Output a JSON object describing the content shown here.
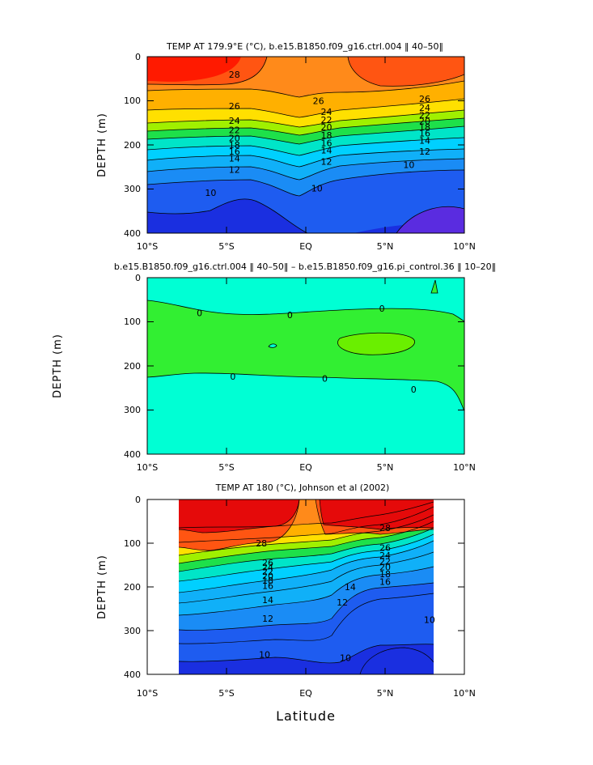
{
  "chart_data": [
    {
      "type": "contour",
      "title": "TEMP AT 179.9°E (°C), b.e15.B1850.f09_g16.ctrl.004 ‖ 40–50‖",
      "ylabel": "DEPTH  (m)",
      "xlabel": "",
      "x_ticks": [
        "10°S",
        "5°S",
        "EQ",
        "5°N",
        "10°N"
      ],
      "y_ticks": [
        "0",
        "100",
        "200",
        "300",
        "400"
      ],
      "xlim": [
        -10,
        10
      ],
      "ylim": [
        0,
        400
      ],
      "y_inverted": true,
      "units": "°C",
      "contour_labels": [
        {
          "x": 0.8,
          "y": 100,
          "label": "26"
        },
        {
          "x": -4.5,
          "y": 112,
          "label": "26"
        },
        {
          "x": -4.5,
          "y": 145,
          "label": "24"
        },
        {
          "x": -4.5,
          "y": 166,
          "label": "22"
        },
        {
          "x": -4.5,
          "y": 184,
          "label": "20"
        },
        {
          "x": -4.5,
          "y": 200,
          "label": "18"
        },
        {
          "x": -4.5,
          "y": 215,
          "label": "16"
        },
        {
          "x": -4.5,
          "y": 230,
          "label": "14"
        },
        {
          "x": -4.5,
          "y": 256,
          "label": "12"
        },
        {
          "x": -6.0,
          "y": 308,
          "label": "10"
        },
        {
          "x": -4.5,
          "y": 40,
          "label": "28"
        },
        {
          "x": 1.3,
          "y": 125,
          "label": "24"
        },
        {
          "x": 1.3,
          "y": 143,
          "label": "22"
        },
        {
          "x": 1.3,
          "y": 160,
          "label": "20"
        },
        {
          "x": 1.3,
          "y": 178,
          "label": "18"
        },
        {
          "x": 1.3,
          "y": 195,
          "label": "16"
        },
        {
          "x": 1.3,
          "y": 212,
          "label": "14"
        },
        {
          "x": 1.3,
          "y": 238,
          "label": "12"
        },
        {
          "x": 0.7,
          "y": 298,
          "label": "10"
        },
        {
          "x": 7.5,
          "y": 95,
          "label": "26"
        },
        {
          "x": 7.5,
          "y": 116,
          "label": "24"
        },
        {
          "x": 7.5,
          "y": 132,
          "label": "22"
        },
        {
          "x": 7.5,
          "y": 146,
          "label": "20"
        },
        {
          "x": 7.5,
          "y": 160,
          "label": "18"
        },
        {
          "x": 7.5,
          "y": 173,
          "label": "16"
        },
        {
          "x": 7.5,
          "y": 190,
          "label": "14"
        },
        {
          "x": 7.5,
          "y": 215,
          "label": "12"
        },
        {
          "x": 6.5,
          "y": 245,
          "label": "10"
        }
      ]
    },
    {
      "type": "contour",
      "title": "b.e15.B1850.f09_g16.ctrl.004 ‖ 40–50‖ – b.e15.B1850.f09_g16.pi_control.36 ‖ 10–20‖",
      "ylabel": "DEPTH  (m)",
      "xlabel": "",
      "x_ticks": [
        "10°S",
        "5°S",
        "EQ",
        "5°N",
        "10°N"
      ],
      "y_ticks": [
        "0",
        "100",
        "200",
        "300",
        "400"
      ],
      "xlim": [
        -10,
        10
      ],
      "ylim": [
        0,
        400
      ],
      "y_inverted": true,
      "units": "°C",
      "contour_labels": [
        {
          "x": -6.7,
          "y": 80,
          "label": "0"
        },
        {
          "x": -1.0,
          "y": 84,
          "label": "0"
        },
        {
          "x": 4.8,
          "y": 70,
          "label": "0"
        },
        {
          "x": -4.6,
          "y": 224,
          "label": "0"
        },
        {
          "x": 1.2,
          "y": 228,
          "label": "0"
        },
        {
          "x": 6.8,
          "y": 253,
          "label": "0"
        }
      ]
    },
    {
      "type": "contour",
      "title": "TEMP AT 180 (°C), Johnson et al (2002)",
      "ylabel": "DEPTH  (m)",
      "xlabel": "Latitude",
      "x_ticks": [
        "10°S",
        "5°S",
        "EQ",
        "5°N",
        "10°N"
      ],
      "y_ticks": [
        "0",
        "100",
        "200",
        "300",
        "400"
      ],
      "xlim": [
        -10,
        10
      ],
      "ylim": [
        0,
        400
      ],
      "data_xrange": [
        -8,
        8
      ],
      "y_inverted": true,
      "units": "°C",
      "contour_labels": [
        {
          "x": 5.0,
          "y": 65,
          "label": "28"
        },
        {
          "x": -2.8,
          "y": 100,
          "label": "28"
        },
        {
          "x": 5.0,
          "y": 110,
          "label": "26"
        },
        {
          "x": 5.0,
          "y": 128,
          "label": "24"
        },
        {
          "x": 5.0,
          "y": 142,
          "label": "22"
        },
        {
          "x": 5.0,
          "y": 155,
          "label": "20"
        },
        {
          "x": 5.0,
          "y": 170,
          "label": "18"
        },
        {
          "x": 5.0,
          "y": 188,
          "label": "16"
        },
        {
          "x": 2.8,
          "y": 200,
          "label": "14"
        },
        {
          "x": 2.3,
          "y": 235,
          "label": "12"
        },
        {
          "x": -2.4,
          "y": 144,
          "label": "26"
        },
        {
          "x": -2.4,
          "y": 155,
          "label": "24"
        },
        {
          "x": -2.4,
          "y": 165,
          "label": "22"
        },
        {
          "x": -2.4,
          "y": 175,
          "label": "20"
        },
        {
          "x": -2.4,
          "y": 185,
          "label": "18"
        },
        {
          "x": -2.4,
          "y": 197,
          "label": "16"
        },
        {
          "x": -2.4,
          "y": 230,
          "label": "14"
        },
        {
          "x": -2.4,
          "y": 272,
          "label": "12"
        },
        {
          "x": 7.8,
          "y": 275,
          "label": "10"
        },
        {
          "x": 2.5,
          "y": 362,
          "label": "10"
        },
        {
          "x": -2.6,
          "y": 355,
          "label": "10"
        }
      ]
    }
  ]
}
